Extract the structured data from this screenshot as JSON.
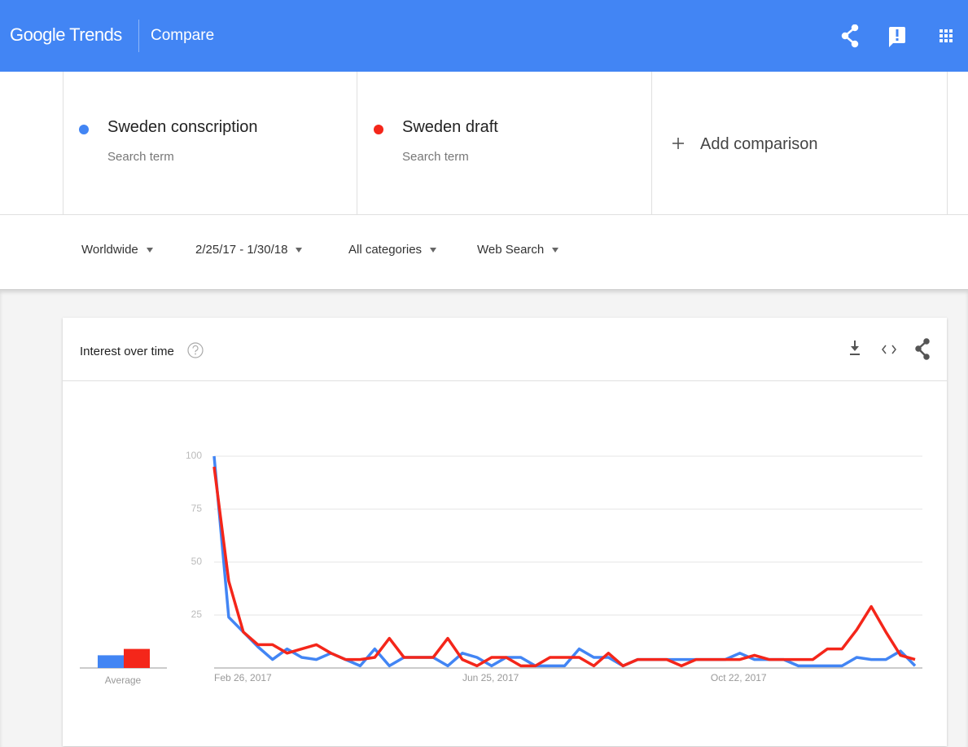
{
  "header": {
    "logo": "Google Trends",
    "section": "Compare"
  },
  "search_term_labels": [
    "Search term",
    "Search term"
  ],
  "add_comparison": "Add comparison",
  "filters": [
    "Worldwide",
    "2/25/17 - 1/30/18",
    "All categories",
    "Web Search"
  ],
  "card_title": "Interest over time",
  "chart_data": {
    "type": "line",
    "categories": [
      "Feb 26, 2017",
      null,
      null,
      null,
      null,
      null,
      null,
      null,
      null,
      null,
      null,
      null,
      null,
      null,
      null,
      null,
      null,
      "Jun 25, 2017",
      null,
      null,
      null,
      null,
      null,
      null,
      null,
      null,
      null,
      null,
      null,
      null,
      null,
      null,
      null,
      null,
      "Oct 22, 2017",
      null,
      null,
      null,
      null,
      null,
      null,
      null,
      null,
      null,
      null,
      null,
      null,
      null,
      null
    ],
    "series": [
      {
        "name": "Sweden conscription",
        "color": "#4285f4",
        "average": 6,
        "values": [
          100,
          24,
          17,
          10,
          4,
          9,
          5,
          4,
          7,
          4,
          1,
          9,
          1,
          5,
          5,
          5,
          1,
          7,
          5,
          1,
          5,
          5,
          1,
          1,
          1,
          9,
          5,
          5,
          1,
          4,
          4,
          4,
          4,
          4,
          4,
          4,
          7,
          4,
          4,
          4,
          1,
          1,
          1,
          1,
          5,
          4,
          4,
          8,
          1
        ]
      },
      {
        "name": "Sweden draft",
        "color": "#f4261a",
        "average": 9,
        "values": [
          95,
          41,
          17,
          11,
          11,
          7,
          9,
          11,
          7,
          4,
          4,
          5,
          14,
          5,
          5,
          5,
          14,
          4,
          1,
          5,
          5,
          1,
          1,
          5,
          5,
          5,
          1,
          7,
          1,
          4,
          4,
          4,
          1,
          4,
          4,
          4,
          4,
          6,
          4,
          4,
          4,
          4,
          9,
          9,
          18,
          29,
          17,
          6,
          4
        ]
      }
    ],
    "average_label": "Average",
    "ylim": [
      0,
      100
    ],
    "yticks": [
      25,
      50,
      75,
      100
    ],
    "grid": true
  }
}
